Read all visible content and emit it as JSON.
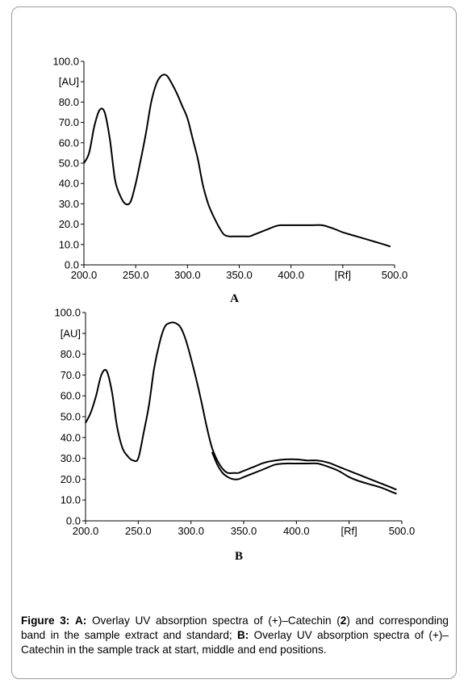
{
  "chart_data": [
    {
      "type": "line",
      "panel_label": "A",
      "xlabel": "[Rf]",
      "ylabel": "[AU]",
      "xlim": [
        200,
        500
      ],
      "ylim": [
        0,
        100
      ],
      "x_ticks": [
        "200.0",
        "250.0",
        "300.0",
        "350.0",
        "400.0",
        "",
        "500.0"
      ],
      "y_ticks": [
        "0.0",
        "10.0",
        "20.0",
        "30.0",
        "40.0",
        "50.0",
        "60.0",
        "70.0",
        "80.0",
        "",
        "100.0"
      ],
      "grid": false,
      "series": [
        {
          "x": [
            200,
            205,
            210,
            215,
            220,
            225,
            230,
            235,
            240,
            245,
            250,
            255,
            260,
            265,
            270,
            275,
            280,
            285,
            290,
            295,
            300,
            305,
            310,
            315,
            320,
            325,
            330,
            335,
            340,
            345,
            350,
            355,
            360,
            365,
            370,
            375,
            380,
            385,
            390,
            395,
            400,
            410,
            420,
            430,
            440,
            450,
            460,
            470,
            480,
            490,
            496
          ],
          "y": [
            50,
            55,
            68,
            76,
            75,
            62,
            42,
            34,
            30,
            31,
            40,
            52,
            65,
            80,
            89,
            93,
            93,
            89,
            84,
            78,
            72,
            62,
            52,
            39,
            30,
            24,
            19,
            15,
            14,
            14,
            14,
            14,
            14,
            15,
            16,
            17,
            18,
            19,
            19.5,
            19.5,
            19.5,
            19.5,
            19.5,
            19.5,
            18,
            16,
            14.5,
            13,
            11.5,
            10,
            9
          ]
        }
      ]
    },
    {
      "type": "line",
      "panel_label": "B",
      "xlabel": "[Rf]",
      "ylabel": "[AU]",
      "xlim": [
        200,
        500
      ],
      "ylim": [
        0,
        100
      ],
      "x_ticks": [
        "200.0",
        "250.0",
        "300.0",
        "350.0",
        "400.0",
        "",
        "500.0"
      ],
      "y_ticks": [
        "0.0",
        "10.0",
        "20.0",
        "30.0",
        "40.0",
        "50.0",
        "60.0",
        "70.0",
        "80.0",
        "",
        "100.0"
      ],
      "grid": false,
      "series": [
        {
          "x": [
            200,
            205,
            210,
            215,
            220,
            225,
            230,
            235,
            240,
            245,
            250,
            255,
            260,
            265,
            270,
            275,
            280,
            285,
            290,
            295,
            300,
            305,
            310,
            315,
            320,
            325,
            330,
            335,
            340,
            345,
            350,
            355,
            360,
            370,
            380,
            390,
            400,
            410,
            420,
            430,
            440,
            450,
            460,
            470,
            480,
            490,
            495
          ],
          "y": [
            47,
            52,
            60,
            70,
            72,
            62,
            45,
            35,
            31,
            29,
            30,
            42,
            55,
            73,
            85,
            93,
            95,
            95,
            93,
            87,
            78,
            68,
            57,
            45,
            35,
            29,
            25,
            23,
            23,
            23,
            24,
            25,
            26,
            28,
            29,
            29.5,
            29.5,
            29,
            29,
            28,
            26,
            24,
            22,
            20,
            18,
            16,
            15
          ]
        },
        {
          "x": [
            320,
            325,
            330,
            335,
            340,
            345,
            350,
            355,
            360,
            370,
            380,
            390,
            400,
            410,
            420,
            430,
            440,
            450,
            460,
            470,
            480,
            490,
            495
          ],
          "y": [
            33,
            27,
            23,
            21,
            20,
            20,
            21,
            22,
            23,
            25,
            27,
            27.5,
            27.5,
            27.5,
            27.5,
            26,
            24,
            21,
            19,
            17.5,
            16,
            14,
            13
          ]
        }
      ]
    }
  ],
  "caption": {
    "fig_label": "Figure 3:",
    "a_label": "A:",
    "a_text_1": " Overlay UV absorption spectra of (+)–Catechin (",
    "compound_number": "2",
    "a_text_2": ") and corresponding band in the sample extract and standard; ",
    "b_label": "B:",
    "b_text": " Overlay UV absorption spectra of (+)–Catechin in the sample track at start, middle and end positions."
  }
}
